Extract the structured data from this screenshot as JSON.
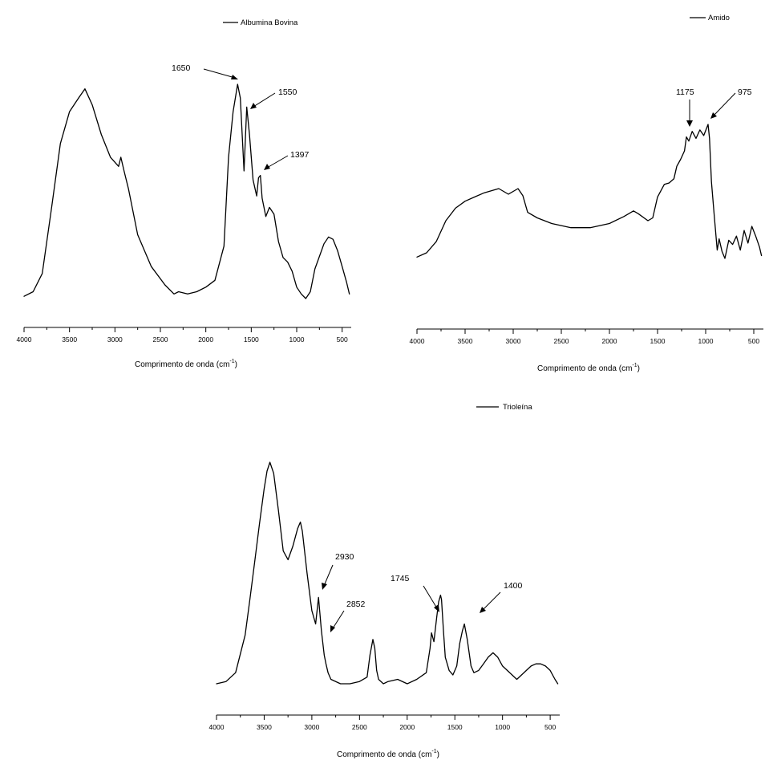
{
  "chart_data": [
    {
      "type": "line",
      "series": [
        {
          "name": "Albumina Bovina",
          "color": "#000000"
        }
      ],
      "xlabel": "Comprimento de onda (cm",
      "xlabel_sup": "-1",
      "xlabel_end": ")",
      "x_ticks": [
        "4000",
        "3500",
        "3000",
        "2500",
        "2000",
        "1500",
        "1000",
        "500"
      ],
      "xlim": [
        4000,
        400
      ],
      "y_axis_shown": false,
      "x": [
        4000,
        3900,
        3800,
        3700,
        3600,
        3500,
        3400,
        3330,
        3250,
        3150,
        3050,
        2960,
        2935,
        2900,
        2850,
        2750,
        2600,
        2450,
        2350,
        2300,
        2200,
        2100,
        2000,
        1900,
        1800,
        1750,
        1700,
        1650,
        1620,
        1580,
        1550,
        1520,
        1480,
        1440,
        1420,
        1400,
        1380,
        1340,
        1300,
        1250,
        1200,
        1150,
        1100,
        1050,
        1000,
        950,
        900,
        850,
        800,
        700,
        650,
        600,
        550,
        500,
        450,
        420
      ],
      "y": [
        0.01,
        0.03,
        0.11,
        0.39,
        0.68,
        0.82,
        0.88,
        0.92,
        0.85,
        0.72,
        0.62,
        0.58,
        0.62,
        0.56,
        0.48,
        0.28,
        0.14,
        0.06,
        0.02,
        0.03,
        0.02,
        0.03,
        0.05,
        0.08,
        0.23,
        0.62,
        0.82,
        0.94,
        0.88,
        0.56,
        0.84,
        0.72,
        0.52,
        0.45,
        0.53,
        0.54,
        0.44,
        0.36,
        0.4,
        0.37,
        0.25,
        0.18,
        0.16,
        0.12,
        0.05,
        0.02,
        0.0,
        0.03,
        0.13,
        0.24,
        0.27,
        0.26,
        0.21,
        0.14,
        0.07,
        0.02
      ],
      "annotations": [
        {
          "text": "1650",
          "x": 1650
        },
        {
          "text": "1550",
          "x": 1550
        },
        {
          "text": "1397",
          "x": 1397
        }
      ]
    },
    {
      "type": "line",
      "series": [
        {
          "name": "Amido",
          "color": "#000000"
        }
      ],
      "xlabel": "Comprimento de onda (cm",
      "xlabel_sup": "-1",
      "xlabel_end": ")",
      "x_ticks": [
        "4000",
        "3500",
        "3000",
        "2500",
        "2000",
        "1500",
        "1000",
        "500"
      ],
      "xlim": [
        4000,
        400
      ],
      "y_axis_shown": false,
      "x": [
        4000,
        3900,
        3800,
        3700,
        3600,
        3500,
        3400,
        3300,
        3200,
        3150,
        3050,
        3000,
        2950,
        2900,
        2850,
        2750,
        2600,
        2400,
        2200,
        2000,
        1850,
        1750,
        1700,
        1600,
        1550,
        1500,
        1430,
        1380,
        1330,
        1300,
        1260,
        1220,
        1200,
        1175,
        1140,
        1100,
        1060,
        1020,
        975,
        960,
        940,
        910,
        880,
        860,
        830,
        800,
        760,
        720,
        680,
        640,
        600,
        560,
        520,
        480,
        440,
        420
      ],
      "y": [
        0.01,
        0.04,
        0.12,
        0.27,
        0.36,
        0.41,
        0.44,
        0.47,
        0.49,
        0.5,
        0.46,
        0.48,
        0.5,
        0.45,
        0.33,
        0.29,
        0.25,
        0.22,
        0.22,
        0.25,
        0.3,
        0.34,
        0.32,
        0.27,
        0.29,
        0.44,
        0.53,
        0.54,
        0.57,
        0.66,
        0.71,
        0.77,
        0.87,
        0.84,
        0.91,
        0.86,
        0.92,
        0.88,
        0.96,
        0.86,
        0.55,
        0.3,
        0.06,
        0.14,
        0.05,
        0.0,
        0.13,
        0.1,
        0.16,
        0.06,
        0.2,
        0.11,
        0.23,
        0.16,
        0.08,
        0.02
      ],
      "annotations": [
        {
          "text": "1175",
          "x": 1175
        },
        {
          "text": "975",
          "x": 975
        }
      ]
    },
    {
      "type": "line",
      "series": [
        {
          "name": "Trioleína",
          "color": "#000000"
        }
      ],
      "xlabel": "Comprimento de onda (cm",
      "xlabel_sup": "-1",
      "xlabel_end": ")",
      "x_ticks": [
        "4000",
        "3500",
        "3000",
        "2500",
        "2000",
        "1500",
        "1000",
        "500"
      ],
      "xlim": [
        4000,
        400
      ],
      "y_axis_shown": false,
      "x": [
        4000,
        3900,
        3800,
        3700,
        3650,
        3600,
        3550,
        3500,
        3470,
        3440,
        3400,
        3350,
        3300,
        3250,
        3200,
        3150,
        3120,
        3100,
        3050,
        3000,
        2960,
        2930,
        2900,
        2870,
        2852,
        2830,
        2800,
        2700,
        2600,
        2500,
        2420,
        2390,
        2360,
        2340,
        2320,
        2300,
        2250,
        2200,
        2100,
        2000,
        1900,
        1800,
        1760,
        1745,
        1720,
        1690,
        1670,
        1650,
        1640,
        1620,
        1600,
        1560,
        1520,
        1480,
        1450,
        1420,
        1400,
        1370,
        1330,
        1300,
        1250,
        1200,
        1150,
        1100,
        1050,
        1000,
        950,
        900,
        850,
        800,
        750,
        700,
        650,
        600,
        550,
        500,
        450,
        420
      ],
      "y": [
        0.0,
        0.01,
        0.05,
        0.22,
        0.38,
        0.55,
        0.72,
        0.88,
        0.96,
        1.0,
        0.95,
        0.78,
        0.6,
        0.56,
        0.62,
        0.7,
        0.73,
        0.69,
        0.5,
        0.33,
        0.27,
        0.39,
        0.24,
        0.13,
        0.09,
        0.05,
        0.02,
        0.0,
        0.0,
        0.01,
        0.03,
        0.13,
        0.2,
        0.16,
        0.06,
        0.02,
        0.0,
        0.01,
        0.02,
        0.0,
        0.02,
        0.05,
        0.16,
        0.23,
        0.19,
        0.3,
        0.37,
        0.4,
        0.38,
        0.24,
        0.12,
        0.06,
        0.04,
        0.08,
        0.18,
        0.24,
        0.27,
        0.2,
        0.08,
        0.05,
        0.06,
        0.09,
        0.12,
        0.14,
        0.12,
        0.08,
        0.06,
        0.04,
        0.02,
        0.04,
        0.06,
        0.08,
        0.09,
        0.09,
        0.08,
        0.06,
        0.02,
        0.0
      ],
      "annotations": [
        {
          "text": "2930",
          "x": 2930
        },
        {
          "text": "2852",
          "x": 2852
        },
        {
          "text": "1745",
          "x": 1745
        },
        {
          "text": "1400",
          "x": 1400
        }
      ]
    }
  ]
}
